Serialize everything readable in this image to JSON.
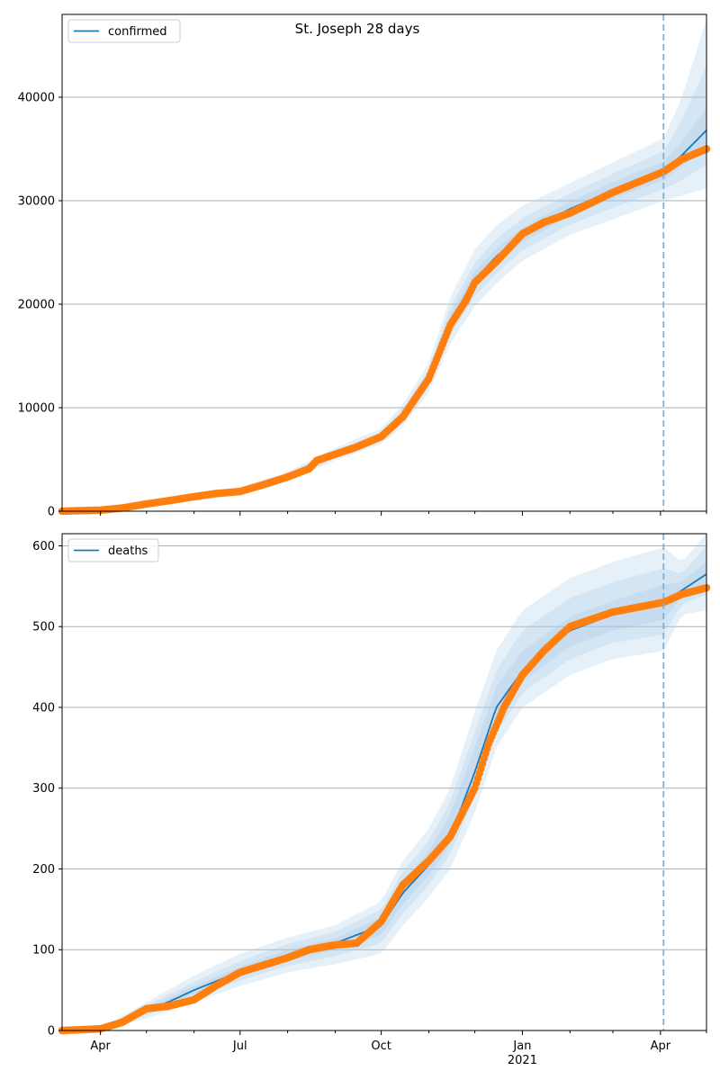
{
  "figure": {
    "suptitle": "St. Joseph 28 days"
  },
  "colors": {
    "model_line": "#1f77b4",
    "observed_points": "#ff7f0e",
    "band": "#a6c8e6",
    "forecast_marker": "#7fb2d4",
    "grid": "#b0b0b0"
  },
  "x_axis": {
    "ticks": [
      {
        "date": "2020-04-01",
        "label": "Apr",
        "sub": ""
      },
      {
        "date": "2020-07-01",
        "label": "Jul",
        "sub": ""
      },
      {
        "date": "2020-10-01",
        "label": "Oct",
        "sub": ""
      },
      {
        "date": "2021-01-01",
        "label": "Jan",
        "sub": "2021"
      },
      {
        "date": "2021-04-01",
        "label": "Apr",
        "sub": ""
      }
    ],
    "minor_ticks": [
      "2020-05-01",
      "2020-06-01",
      "2020-08-01",
      "2020-09-01",
      "2020-11-01",
      "2020-12-01",
      "2021-02-01",
      "2021-03-01",
      "2021-05-01"
    ],
    "range": [
      "2020-03-07",
      "2021-05-01"
    ]
  },
  "chart_data": [
    {
      "type": "line",
      "title": "St. Joseph 28 days",
      "legend": "confirmed",
      "legend_position": "top-left",
      "grid": "horizontal",
      "ylim": [
        0,
        48000
      ],
      "yticks": [
        0,
        10000,
        20000,
        30000,
        40000
      ],
      "forecast_start": "2021-04-03",
      "series": [
        {
          "name": "confirmed",
          "kind": "model",
          "x": [
            "2020-03-07",
            "2020-04-01",
            "2020-05-01",
            "2020-06-01",
            "2020-07-01",
            "2020-08-01",
            "2020-08-15",
            "2020-09-01",
            "2020-10-01",
            "2020-10-15",
            "2020-11-01",
            "2020-11-15",
            "2020-12-01",
            "2020-12-15",
            "2021-01-01",
            "2021-01-15",
            "2021-02-01",
            "2021-03-01",
            "2021-04-03",
            "2021-04-15",
            "2021-05-01"
          ],
          "y": [
            0,
            150,
            700,
            1300,
            1900,
            3300,
            4300,
            5500,
            7200,
            9200,
            12800,
            18300,
            22400,
            24600,
            26700,
            27900,
            29200,
            31000,
            32900,
            34400,
            36800
          ]
        },
        {
          "name": "observed",
          "kind": "observed",
          "x": [
            "2020-03-07",
            "2020-04-01",
            "2020-04-15",
            "2020-05-01",
            "2020-05-15",
            "2020-06-01",
            "2020-06-15",
            "2020-07-01",
            "2020-07-15",
            "2020-08-01",
            "2020-08-15",
            "2020-08-20",
            "2020-09-01",
            "2020-09-15",
            "2020-10-01",
            "2020-10-15",
            "2020-11-01",
            "2020-11-15",
            "2020-11-25",
            "2020-12-01",
            "2020-12-15",
            "2021-01-01",
            "2021-01-15",
            "2021-02-01",
            "2021-03-01",
            "2021-04-03",
            "2021-04-15",
            "2021-05-01"
          ],
          "y": [
            0,
            100,
            300,
            700,
            1000,
            1400,
            1700,
            1900,
            2500,
            3300,
            4100,
            4900,
            5500,
            6200,
            7200,
            9100,
            12800,
            18000,
            20300,
            22100,
            24100,
            26800,
            27900,
            28800,
            30800,
            32800,
            34000,
            35000
          ]
        }
      ],
      "bands": [
        {
          "x": [
            "2020-03-07",
            "2020-04-01",
            "2020-05-01",
            "2020-06-01",
            "2020-07-01",
            "2020-08-01",
            "2020-09-01",
            "2020-10-01",
            "2020-10-15",
            "2020-11-01",
            "2020-11-15",
            "2020-12-01",
            "2020-12-15",
            "2021-01-01",
            "2021-02-01",
            "2021-03-01",
            "2021-04-03",
            "2021-04-15",
            "2021-05-01"
          ],
          "lower": [
            0,
            100,
            500,
            1000,
            1600,
            2900,
            4900,
            6500,
            8200,
            11500,
            16200,
            19800,
            22000,
            24200,
            26700,
            28200,
            30000,
            30500,
            31200
          ],
          "upper": [
            0,
            250,
            950,
            1700,
            2300,
            3800,
            6100,
            8000,
            10300,
            14300,
            20700,
            25300,
            27600,
            29500,
            31700,
            33700,
            36000,
            40000,
            47500
          ]
        },
        {
          "x": [
            "2020-03-07",
            "2020-04-01",
            "2020-05-01",
            "2020-06-01",
            "2020-07-01",
            "2020-08-01",
            "2020-09-01",
            "2020-10-01",
            "2020-10-15",
            "2020-11-01",
            "2020-11-15",
            "2020-12-01",
            "2020-12-15",
            "2021-01-01",
            "2021-02-01",
            "2021-03-01",
            "2021-04-03",
            "2021-04-15",
            "2021-05-01"
          ],
          "lower": [
            0,
            120,
            580,
            1120,
            1720,
            3050,
            5120,
            6800,
            8550,
            12000,
            17000,
            20800,
            23000,
            25200,
            27700,
            29300,
            31100,
            32000,
            33500
          ],
          "upper": [
            0,
            210,
            850,
            1550,
            2130,
            3600,
            5850,
            7650,
            9900,
            13700,
            19700,
            24000,
            26300,
            28300,
            30700,
            32600,
            34800,
            37800,
            43000
          ]
        },
        {
          "x": [
            "2020-03-07",
            "2020-04-01",
            "2020-05-01",
            "2020-06-01",
            "2020-07-01",
            "2020-08-01",
            "2020-09-01",
            "2020-10-01",
            "2020-10-15",
            "2020-11-01",
            "2020-11-15",
            "2020-12-01",
            "2020-12-15",
            "2021-01-01",
            "2021-02-01",
            "2021-03-01",
            "2021-04-03",
            "2021-04-15",
            "2021-05-01"
          ],
          "lower": [
            0,
            135,
            640,
            1210,
            1810,
            3170,
            5300,
            7000,
            8850,
            12400,
            17600,
            21600,
            23800,
            26000,
            28500,
            30200,
            32000,
            33300,
            35300
          ],
          "upper": [
            0,
            180,
            770,
            1400,
            2000,
            3450,
            5700,
            7400,
            9550,
            13200,
            19000,
            23200,
            25400,
            27400,
            29900,
            31800,
            33800,
            35700,
            39000
          ]
        }
      ]
    },
    {
      "type": "line",
      "legend": "deaths",
      "legend_position": "top-left",
      "grid": "horizontal",
      "ylim": [
        0,
        615
      ],
      "yticks": [
        0,
        100,
        200,
        300,
        400,
        500,
        600
      ],
      "forecast_start": "2021-04-03",
      "series": [
        {
          "name": "deaths",
          "kind": "model",
          "x": [
            "2020-03-07",
            "2020-04-01",
            "2020-04-15",
            "2020-05-01",
            "2020-05-15",
            "2020-06-01",
            "2020-07-01",
            "2020-08-01",
            "2020-09-01",
            "2020-10-01",
            "2020-10-15",
            "2020-11-01",
            "2020-11-15",
            "2020-12-01",
            "2020-12-15",
            "2021-01-01",
            "2021-01-15",
            "2021-02-01",
            "2021-03-01",
            "2021-04-03",
            "2021-04-15",
            "2021-05-01"
          ],
          "y": [
            0,
            1,
            8,
            25,
            35,
            50,
            73,
            93,
            108,
            130,
            170,
            205,
            240,
            320,
            400,
            445,
            470,
            495,
            515,
            530,
            545,
            565
          ]
        },
        {
          "name": "observed",
          "kind": "observed",
          "x": [
            "2020-03-07",
            "2020-04-01",
            "2020-04-15",
            "2020-05-01",
            "2020-05-15",
            "2020-06-01",
            "2020-06-15",
            "2020-07-01",
            "2020-08-01",
            "2020-08-15",
            "2020-09-01",
            "2020-09-15",
            "2020-10-01",
            "2020-10-15",
            "2020-11-01",
            "2020-11-15",
            "2020-12-01",
            "2020-12-10",
            "2020-12-20",
            "2021-01-01",
            "2021-01-15",
            "2021-02-01",
            "2021-03-01",
            "2021-04-03",
            "2021-04-15",
            "2021-05-01"
          ],
          "y": [
            0,
            2,
            10,
            27,
            30,
            38,
            55,
            72,
            90,
            100,
            106,
            108,
            135,
            180,
            210,
            240,
            300,
            355,
            400,
            440,
            470,
            500,
            518,
            530,
            540,
            548
          ]
        }
      ],
      "bands": [
        {
          "x": [
            "2020-03-07",
            "2020-04-01",
            "2020-05-01",
            "2020-06-01",
            "2020-07-01",
            "2020-08-01",
            "2020-09-01",
            "2020-10-01",
            "2020-10-15",
            "2020-11-01",
            "2020-11-15",
            "2020-12-01",
            "2020-12-15",
            "2021-01-01",
            "2021-02-01",
            "2021-03-01",
            "2021-04-03",
            "2021-04-15",
            "2021-05-01"
          ],
          "lower": [
            0,
            0,
            15,
            35,
            55,
            72,
            82,
            95,
            130,
            165,
            200,
            270,
            350,
            400,
            440,
            460,
            470,
            515,
            520
          ],
          "upper": [
            0,
            3,
            35,
            68,
            95,
            115,
            130,
            160,
            210,
            250,
            300,
            395,
            470,
            520,
            560,
            580,
            598,
            580,
            615
          ]
        },
        {
          "x": [
            "2020-03-07",
            "2020-04-01",
            "2020-05-01",
            "2020-06-01",
            "2020-07-01",
            "2020-08-01",
            "2020-09-01",
            "2020-10-01",
            "2020-10-15",
            "2020-11-01",
            "2020-11-15",
            "2020-12-01",
            "2020-12-15",
            "2021-01-01",
            "2021-02-01",
            "2021-03-01",
            "2021-04-03",
            "2021-04-15",
            "2021-05-01"
          ],
          "lower": [
            0,
            0,
            19,
            41,
            62,
            80,
            92,
            108,
            145,
            180,
            218,
            290,
            368,
            418,
            460,
            480,
            490,
            528,
            540
          ],
          "upper": [
            0,
            2,
            31,
            60,
            86,
            107,
            122,
            150,
            196,
            235,
            283,
            370,
            445,
            495,
            535,
            555,
            572,
            565,
            600
          ]
        },
        {
          "x": [
            "2020-03-07",
            "2020-04-01",
            "2020-05-01",
            "2020-06-01",
            "2020-07-01",
            "2020-08-01",
            "2020-09-01",
            "2020-10-01",
            "2020-10-15",
            "2020-11-01",
            "2020-11-15",
            "2020-12-01",
            "2020-12-15",
            "2021-01-01",
            "2021-02-01",
            "2021-03-01",
            "2021-04-03",
            "2021-04-15",
            "2021-05-01"
          ],
          "lower": [
            0,
            0.5,
            22,
            45,
            67,
            86,
            100,
            118,
            156,
            192,
            230,
            305,
            383,
            432,
            475,
            495,
            508,
            538,
            555
          ],
          "upper": [
            0,
            1.5,
            28,
            55,
            79,
            100,
            114,
            140,
            184,
            222,
            268,
            350,
            425,
            470,
            512,
            532,
            552,
            555,
            580
          ]
        }
      ]
    }
  ]
}
